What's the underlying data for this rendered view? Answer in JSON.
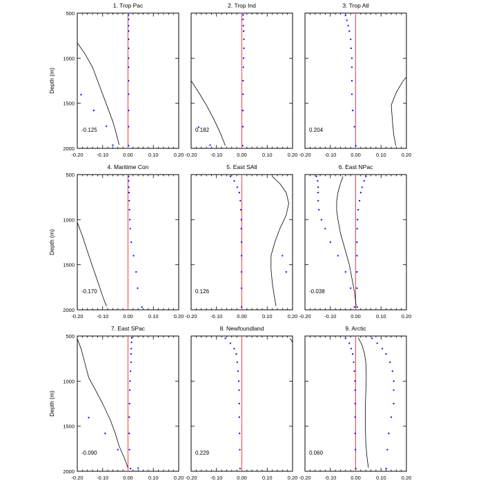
{
  "colors": {
    "zero_line": "#ff3b3b",
    "dots": "#1a1aff",
    "curve": "#000000",
    "axis": "#000000"
  },
  "chart_data": {
    "type": "scatter",
    "ylabel": "Depth (m)",
    "xlim": [
      -0.2,
      0.2
    ],
    "ylim": [
      500,
      2000
    ],
    "x_ticks": [
      -0.2,
      -0.1,
      0.0,
      0.1,
      0.2
    ],
    "x_tick_labels": [
      "-0.20",
      "-0.10",
      "0.00",
      "0.10",
      "0.20"
    ],
    "y_ticks": [
      500,
      1000,
      1500,
      2000
    ],
    "y_tick_labels": [
      "500",
      "1000",
      "1500",
      "2000"
    ],
    "panels": [
      {
        "title": "1. Trop Pac",
        "value_label": "-0.125",
        "dots": [
          [
            0.002,
            520
          ],
          [
            0.002,
            570
          ],
          [
            0.002,
            640
          ],
          [
            0.002,
            700
          ],
          [
            0.002,
            790
          ],
          [
            0.002,
            890
          ],
          [
            0.002,
            1000
          ],
          [
            0.002,
            1100
          ],
          [
            0.002,
            1250
          ],
          [
            0.002,
            1400
          ],
          [
            0.002,
            1580
          ],
          [
            0.002,
            1760
          ],
          [
            0.002,
            1970
          ],
          [
            -0.185,
            1405
          ],
          [
            -0.135,
            1580
          ],
          [
            -0.085,
            1755
          ],
          [
            -0.06,
            1965
          ]
        ],
        "curve": [
          [
            -0.2,
            830
          ],
          [
            -0.17,
            950
          ],
          [
            -0.14,
            1100
          ],
          [
            -0.12,
            1250
          ],
          [
            -0.1,
            1400
          ],
          [
            -0.08,
            1550
          ],
          [
            -0.06,
            1700
          ],
          [
            -0.045,
            1850
          ],
          [
            -0.035,
            1960
          ]
        ]
      },
      {
        "title": "2. Trop Ind",
        "value_label": "0.182",
        "dots": [
          [
            0.005,
            520
          ],
          [
            0.005,
            570
          ],
          [
            0.006,
            640
          ],
          [
            0.007,
            700
          ],
          [
            0.008,
            790
          ],
          [
            0.008,
            890
          ],
          [
            0.007,
            1000
          ],
          [
            0.006,
            1100
          ],
          [
            0.005,
            1250
          ],
          [
            0.005,
            1400
          ],
          [
            0.004,
            1580
          ],
          [
            0.004,
            1760
          ],
          [
            0.003,
            1970
          ],
          [
            -0.17,
            1765
          ],
          [
            -0.125,
            1965
          ]
        ],
        "curve": [
          [
            -0.2,
            1250
          ],
          [
            -0.17,
            1380
          ],
          [
            -0.14,
            1520
          ],
          [
            -0.11,
            1680
          ],
          [
            -0.085,
            1830
          ],
          [
            -0.065,
            1970
          ]
        ]
      },
      {
        "title": "3. Trop Atl",
        "value_label": "0.204",
        "dots": [
          [
            -0.04,
            525
          ],
          [
            -0.035,
            580
          ],
          [
            -0.03,
            640
          ],
          [
            -0.025,
            700
          ],
          [
            -0.02,
            790
          ],
          [
            -0.018,
            890
          ],
          [
            -0.015,
            1000
          ],
          [
            -0.015,
            1100
          ],
          [
            -0.015,
            1250
          ],
          [
            -0.015,
            1400
          ],
          [
            -0.012,
            1580
          ],
          [
            -0.005,
            1760
          ],
          [
            0.0,
            1970
          ]
        ],
        "curve": [
          [
            0.2,
            1210
          ],
          [
            0.185,
            1260
          ],
          [
            0.16,
            1380
          ],
          [
            0.14,
            1520
          ],
          [
            0.145,
            1700
          ],
          [
            0.15,
            1850
          ],
          [
            0.158,
            1970
          ]
        ]
      },
      {
        "title": "4. Maritime Con",
        "value_label": "-0.170",
        "dots": [
          [
            0.002,
            520
          ],
          [
            0.002,
            570
          ],
          [
            0.003,
            640
          ],
          [
            0.004,
            700
          ],
          [
            0.005,
            790
          ],
          [
            0.006,
            890
          ],
          [
            0.007,
            1000
          ],
          [
            0.009,
            1100
          ],
          [
            0.013,
            1250
          ],
          [
            0.022,
            1400
          ],
          [
            0.032,
            1580
          ],
          [
            0.038,
            1760
          ],
          [
            0.055,
            1970
          ]
        ],
        "curve": [
          [
            -0.2,
            1030
          ],
          [
            -0.18,
            1180
          ],
          [
            -0.16,
            1350
          ],
          [
            -0.14,
            1520
          ],
          [
            -0.12,
            1680
          ],
          [
            -0.1,
            1850
          ],
          [
            -0.085,
            1960
          ]
        ]
      },
      {
        "title": "5. East SAtl",
        "value_label": "0.126",
        "dots": [
          [
            -0.045,
            520
          ],
          [
            -0.03,
            570
          ],
          [
            -0.018,
            640
          ],
          [
            -0.01,
            700
          ],
          [
            -0.006,
            790
          ],
          [
            -0.004,
            890
          ],
          [
            -0.002,
            1000
          ],
          [
            -0.002,
            1100
          ],
          [
            -0.001,
            1250
          ],
          [
            -0.001,
            1400
          ],
          [
            -0.001,
            1580
          ],
          [
            -0.001,
            1760
          ],
          [
            -0.001,
            1970
          ],
          [
            0.16,
            1400
          ],
          [
            0.175,
            1580
          ]
        ],
        "curve": [
          [
            0.12,
            520
          ],
          [
            0.15,
            600
          ],
          [
            0.175,
            700
          ],
          [
            0.185,
            820
          ],
          [
            0.175,
            950
          ],
          [
            0.15,
            1100
          ],
          [
            0.13,
            1250
          ],
          [
            0.115,
            1400
          ],
          [
            0.115,
            1550
          ],
          [
            0.12,
            1700
          ],
          [
            0.128,
            1850
          ],
          [
            0.135,
            1960
          ]
        ]
      },
      {
        "title": "6. East NPac",
        "value_label": "-0.038",
        "dots": [
          [
            -0.155,
            520
          ],
          [
            -0.15,
            570
          ],
          [
            -0.148,
            640
          ],
          [
            -0.148,
            700
          ],
          [
            -0.148,
            790
          ],
          [
            -0.145,
            890
          ],
          [
            -0.135,
            1000
          ],
          [
            -0.12,
            1100
          ],
          [
            -0.1,
            1250
          ],
          [
            -0.07,
            1400
          ],
          [
            -0.04,
            1580
          ],
          [
            -0.02,
            1760
          ],
          [
            -0.005,
            1970
          ],
          [
            0.04,
            520
          ],
          [
            0.033,
            570
          ],
          [
            0.025,
            640
          ],
          [
            0.02,
            700
          ],
          [
            0.015,
            790
          ],
          [
            0.01,
            890
          ],
          [
            0.007,
            1000
          ],
          [
            0.006,
            1100
          ],
          [
            0.005,
            1250
          ],
          [
            0.005,
            1400
          ],
          [
            0.005,
            1580
          ],
          [
            0.005,
            1760
          ],
          [
            0.006,
            1970
          ]
        ],
        "curve": [
          [
            -0.05,
            520
          ],
          [
            -0.06,
            600
          ],
          [
            -0.07,
            700
          ],
          [
            -0.075,
            800
          ],
          [
            -0.075,
            900
          ],
          [
            -0.07,
            1000
          ],
          [
            -0.06,
            1150
          ],
          [
            -0.04,
            1350
          ],
          [
            -0.025,
            1500
          ],
          [
            -0.015,
            1650
          ],
          [
            -0.005,
            1800
          ],
          [
            0.002,
            1960
          ]
        ]
      },
      {
        "title": "7. East SPac",
        "value_label": "-0.090",
        "dots": [
          [
            0.015,
            520
          ],
          [
            0.014,
            570
          ],
          [
            0.013,
            640
          ],
          [
            0.012,
            700
          ],
          [
            0.012,
            790
          ],
          [
            0.01,
            890
          ],
          [
            0.008,
            1000
          ],
          [
            0.007,
            1100
          ],
          [
            0.006,
            1250
          ],
          [
            0.005,
            1400
          ],
          [
            0.005,
            1580
          ],
          [
            0.006,
            1760
          ],
          [
            0.01,
            1970
          ],
          [
            -0.155,
            1405
          ],
          [
            -0.09,
            1580
          ],
          [
            -0.04,
            1760
          ],
          [
            0.04,
            1965
          ]
        ],
        "curve": [
          [
            -0.2,
            530
          ],
          [
            -0.185,
            640
          ],
          [
            -0.17,
            800
          ],
          [
            -0.155,
            960
          ],
          [
            -0.13,
            1090
          ],
          [
            -0.1,
            1250
          ],
          [
            -0.07,
            1430
          ],
          [
            -0.05,
            1580
          ],
          [
            -0.035,
            1720
          ],
          [
            -0.015,
            1850
          ],
          [
            0.0,
            1960
          ]
        ]
      },
      {
        "title": "8. Newfoundland",
        "value_label": "0.229",
        "dots": [
          [
            -0.065,
            525
          ],
          [
            -0.045,
            580
          ],
          [
            -0.03,
            640
          ],
          [
            -0.022,
            700
          ],
          [
            -0.018,
            790
          ],
          [
            -0.015,
            890
          ],
          [
            -0.012,
            1000
          ],
          [
            -0.011,
            1100
          ],
          [
            -0.01,
            1250
          ],
          [
            -0.01,
            1400
          ],
          [
            -0.009,
            1580
          ],
          [
            -0.008,
            1760
          ],
          [
            -0.007,
            1970
          ]
        ],
        "curve": [
          [
            0.19,
            525
          ],
          [
            0.2,
            570
          ]
        ]
      },
      {
        "title": "9. Arctic",
        "value_label": "0.060",
        "dots": [
          [
            -0.04,
            525
          ],
          [
            -0.025,
            580
          ],
          [
            -0.018,
            640
          ],
          [
            -0.012,
            700
          ],
          [
            -0.008,
            790
          ],
          [
            -0.005,
            890
          ],
          [
            -0.003,
            1000
          ],
          [
            -0.002,
            1100
          ],
          [
            -0.002,
            1250
          ],
          [
            -0.002,
            1400
          ],
          [
            -0.002,
            1580
          ],
          [
            -0.001,
            1760
          ],
          [
            0.0,
            1970
          ],
          [
            0.065,
            525
          ],
          [
            0.085,
            580
          ],
          [
            0.105,
            640
          ],
          [
            0.12,
            700
          ],
          [
            0.135,
            790
          ],
          [
            0.145,
            890
          ],
          [
            0.15,
            1000
          ],
          [
            0.15,
            1100
          ],
          [
            0.15,
            1250
          ],
          [
            0.14,
            1400
          ],
          [
            0.13,
            1580
          ],
          [
            0.125,
            1760
          ],
          [
            0.12,
            1970
          ]
        ],
        "curve": [
          [
            0.01,
            520
          ],
          [
            0.025,
            600
          ],
          [
            0.035,
            700
          ],
          [
            0.04,
            800
          ],
          [
            0.042,
            950
          ],
          [
            0.04,
            1100
          ],
          [
            0.038,
            1300
          ],
          [
            0.038,
            1500
          ],
          [
            0.04,
            1700
          ],
          [
            0.045,
            1850
          ],
          [
            0.05,
            1960
          ]
        ]
      }
    ]
  }
}
